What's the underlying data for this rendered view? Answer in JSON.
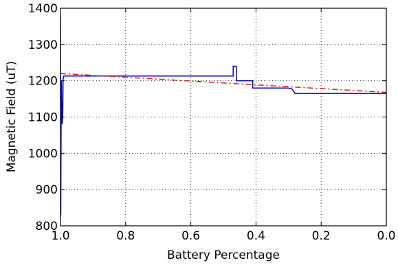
{
  "chart_data": {
    "type": "line",
    "title": "",
    "xlabel": "Battery Percentage",
    "ylabel": "Magnetic Field (uT)",
    "xlim": [
      1.0,
      0.0
    ],
    "ylim": [
      800,
      1400
    ],
    "x_reversed": true,
    "grid": true,
    "legend": "none",
    "x_ticks": [
      1.0,
      0.8,
      0.6,
      0.4,
      0.2,
      0.0
    ],
    "x_tick_labels": [
      "1.0",
      "0.8",
      "0.6",
      "0.4",
      "0.2",
      "0.0"
    ],
    "y_ticks": [
      800,
      900,
      1000,
      1100,
      1200,
      1300,
      1400
    ],
    "y_tick_labels": [
      "800",
      "900",
      "1000",
      "1100",
      "1200",
      "1300",
      "1400"
    ],
    "series": [
      {
        "style": "solid",
        "color": "#0000cc",
        "x": [
          1.0,
          1.0,
          0.999,
          0.998,
          0.997,
          0.995,
          0.993,
          0.992,
          0.99,
          0.98,
          0.9,
          0.8,
          0.7,
          0.6,
          0.5,
          0.47,
          0.47,
          0.46,
          0.46,
          0.41,
          0.41,
          0.3,
          0.29,
          0.28,
          0.2,
          0.1,
          0.0
        ],
        "y": [
          820,
          1380,
          830,
          1100,
          1200,
          1080,
          1100,
          1205,
          1213,
          1213,
          1213,
          1213,
          1213,
          1213,
          1213,
          1213,
          1240,
          1240,
          1200,
          1200,
          1180,
          1180,
          1178,
          1165,
          1165,
          1165,
          1165
        ]
      },
      {
        "style": "dashed",
        "color": "#dd2222",
        "x": [
          1.0,
          0.0
        ],
        "y": [
          1220,
          1168
        ]
      }
    ]
  }
}
